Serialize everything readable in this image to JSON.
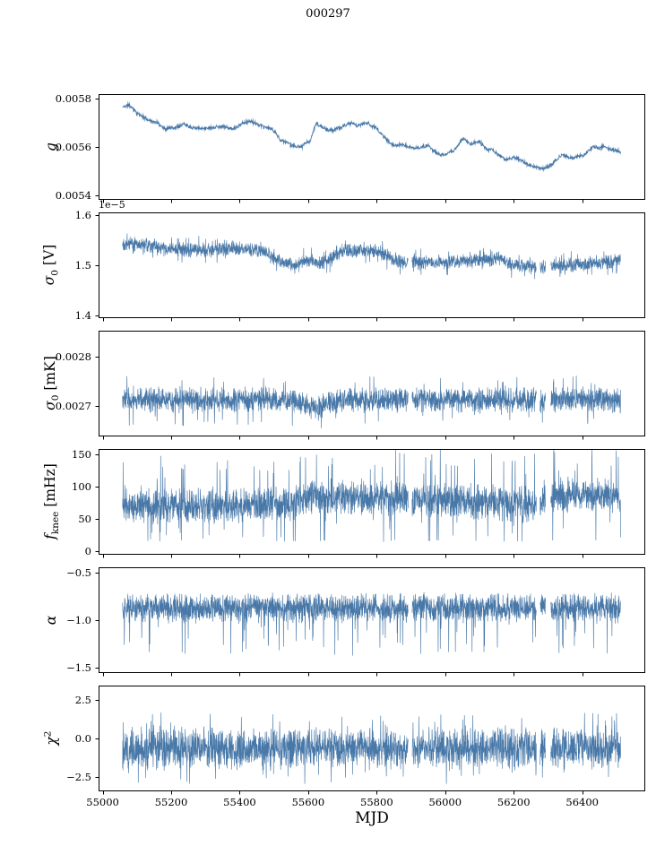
{
  "chart_data": {
    "type": "line",
    "title": "000297",
    "xlabel": "MJD",
    "line_color": "#4878a8",
    "axis_color": "#000000",
    "xlim": [
      54988,
      56584
    ],
    "x_start": 55058,
    "x_end": 56512,
    "xticks": [
      55000,
      55200,
      55400,
      55600,
      55800,
      56000,
      56200,
      56400
    ],
    "xtick_labels": [
      "55000",
      "55200",
      "55400",
      "55600",
      "55800",
      "56000",
      "56200",
      "56400"
    ],
    "gaps": [
      [
        55892,
        55903
      ],
      [
        56266,
        56277
      ],
      [
        56293,
        56308
      ]
    ],
    "panels": [
      {
        "id": "g",
        "ylabel": {
          "italic": "g",
          "sub": "",
          "sup": "",
          "unit": ""
        },
        "ylim": [
          0.00538,
          0.00582
        ],
        "ytick_values": [
          0.0054,
          0.0056,
          0.0058
        ],
        "ytick_labels": [
          "0.0054",
          "0.0056",
          "0.0058"
        ],
        "offset_label": "",
        "style": "smooth",
        "n_points": 1600,
        "seed": 11,
        "noise": 6e-06,
        "walk": 2e-06,
        "walk_max": 2e-05,
        "mean_points": [
          [
            55058,
            0.005765
          ],
          [
            55075,
            0.005775
          ],
          [
            55100,
            0.005745
          ],
          [
            55130,
            0.005715
          ],
          [
            55160,
            0.005705
          ],
          [
            55185,
            0.005685
          ],
          [
            55210,
            0.005695
          ],
          [
            55235,
            0.005715
          ],
          [
            55260,
            0.0057
          ],
          [
            55290,
            0.005695
          ],
          [
            55320,
            0.0057
          ],
          [
            55350,
            0.005705
          ],
          [
            55380,
            0.00569
          ],
          [
            55410,
            0.00571
          ],
          [
            55435,
            0.00572
          ],
          [
            55465,
            0.005685
          ],
          [
            55495,
            0.00567
          ],
          [
            55520,
            0.005625
          ],
          [
            55550,
            0.005612
          ],
          [
            55580,
            0.0056
          ],
          [
            55605,
            0.005615
          ],
          [
            55625,
            0.005688
          ],
          [
            55645,
            0.005665
          ],
          [
            55670,
            0.00565
          ],
          [
            55695,
            0.005665
          ],
          [
            55720,
            0.00568
          ],
          [
            55750,
            0.00568
          ],
          [
            55775,
            0.00569
          ],
          [
            55800,
            0.00567
          ],
          [
            55825,
            0.00563
          ],
          [
            55850,
            0.005595
          ],
          [
            55875,
            0.005605
          ],
          [
            55900,
            0.005585
          ],
          [
            55925,
            0.00558
          ],
          [
            55950,
            0.005595
          ],
          [
            55975,
            0.005565
          ],
          [
            56000,
            0.00556
          ],
          [
            56025,
            0.005565
          ],
          [
            56050,
            0.00562
          ],
          [
            56075,
            0.0056
          ],
          [
            56100,
            0.005615
          ],
          [
            56125,
            0.005575
          ],
          [
            56150,
            0.00556
          ],
          [
            56175,
            0.005535
          ],
          [
            56200,
            0.005545
          ],
          [
            56225,
            0.005525
          ],
          [
            56250,
            0.005505
          ],
          [
            56280,
            0.00549
          ],
          [
            56310,
            0.005512
          ],
          [
            56340,
            0.00556
          ],
          [
            56370,
            0.005545
          ],
          [
            56400,
            0.005558
          ],
          [
            56430,
            0.005595
          ],
          [
            56460,
            0.005588
          ],
          [
            56485,
            0.00557
          ],
          [
            56512,
            0.005565
          ]
        ]
      },
      {
        "id": "sigma0_V",
        "ylabel": {
          "italic": "σ",
          "sub": "0",
          "sup": "",
          "unit": " [V]"
        },
        "ylim": [
          1.395,
          1.605
        ],
        "ytick_values": [
          1.4,
          1.5,
          1.6
        ],
        "ytick_labels": [
          "1.4",
          "1.5",
          "1.6"
        ],
        "offset_label": "1e−5",
        "style": "noisy",
        "n_points": 2600,
        "seed": 22,
        "noise": 0.016,
        "spike_p": 0.05,
        "spike_amp": 0.02,
        "spike_dir": 0,
        "mean_points": [
          [
            55058,
            1.545
          ],
          [
            55120,
            1.54
          ],
          [
            55200,
            1.532
          ],
          [
            55300,
            1.53
          ],
          [
            55400,
            1.533
          ],
          [
            55460,
            1.53
          ],
          [
            55520,
            1.508
          ],
          [
            55560,
            1.5
          ],
          [
            55600,
            1.51
          ],
          [
            55640,
            1.505
          ],
          [
            55700,
            1.528
          ],
          [
            55800,
            1.53
          ],
          [
            55840,
            1.515
          ],
          [
            55880,
            1.505
          ],
          [
            55960,
            1.505
          ],
          [
            56040,
            1.508
          ],
          [
            56120,
            1.512
          ],
          [
            56160,
            1.515
          ],
          [
            56200,
            1.5
          ],
          [
            56300,
            1.498
          ],
          [
            56400,
            1.503
          ],
          [
            56512,
            1.51
          ]
        ]
      },
      {
        "id": "sigma0_mK",
        "ylabel": {
          "italic": "σ",
          "sub": "0",
          "sup": "",
          "unit": " [mK]"
        },
        "ylim": [
          0.002638,
          0.002852
        ],
        "ytick_values": [
          0.0027,
          0.0028
        ],
        "ytick_labels": [
          "0.0027",
          "0.0028"
        ],
        "offset_label": "",
        "style": "noisy",
        "n_points": 2600,
        "seed": 33,
        "noise": 2.8e-05,
        "spike_p": 0.04,
        "spike_amp": 4e-05,
        "spike_dir": 0,
        "mean_points": [
          [
            55058,
            0.002712
          ],
          [
            55540,
            0.002712
          ],
          [
            55590,
            0.002703
          ],
          [
            55620,
            0.002694
          ],
          [
            55660,
            0.002704
          ],
          [
            55700,
            0.002712
          ],
          [
            56512,
            0.002712
          ]
        ]
      },
      {
        "id": "f_knee",
        "ylabel": {
          "italic": "f",
          "sub": "knee",
          "sup": "",
          "unit": " [mHz]"
        },
        "ylim": [
          -6,
          158
        ],
        "ytick_values": [
          0,
          50,
          100,
          150
        ],
        "ytick_labels": [
          "0",
          "50",
          "100",
          "150"
        ],
        "offset_label": "",
        "style": "noisy",
        "n_points": 2600,
        "seed": 44,
        "noise": 30,
        "spike_p": 0.07,
        "spike_amp": 65,
        "spike_dir": 0,
        "floor": 14,
        "mean_points": [
          [
            55058,
            68
          ],
          [
            55300,
            70
          ],
          [
            55550,
            74
          ],
          [
            55610,
            84
          ],
          [
            55900,
            80
          ],
          [
            56100,
            76
          ],
          [
            56240,
            70
          ],
          [
            56330,
            88
          ],
          [
            56512,
            86
          ]
        ]
      },
      {
        "id": "alpha",
        "ylabel": {
          "italic": "α",
          "sub": "",
          "sup": "",
          "unit": ""
        },
        "ylim": [
          -1.56,
          -0.44
        ],
        "ytick_values": [
          -0.5,
          -1.0,
          -1.5
        ],
        "ytick_labels": [
          "−0.5",
          "−1.0",
          "−1.5"
        ],
        "offset_label": "",
        "style": "noisy",
        "n_points": 2600,
        "seed": 55,
        "noise": 0.17,
        "spike_p": 0.035,
        "spike_amp": 0.42,
        "spike_dir": -1,
        "mean_points": [
          [
            55058,
            -0.87
          ],
          [
            56512,
            -0.87
          ]
        ]
      },
      {
        "id": "chi2",
        "ylabel": {
          "italic": "χ",
          "sub": "",
          "sup": "2",
          "unit": ""
        },
        "ylim": [
          -3.45,
          3.45
        ],
        "ytick_values": [
          -2.5,
          0.0,
          2.5
        ],
        "ytick_labels": [
          "−2.5",
          "0.0",
          "2.5"
        ],
        "offset_label": "",
        "style": "noisy",
        "n_points": 2600,
        "seed": 66,
        "noise": 1.5,
        "spike_p": 0.05,
        "spike_amp": 1.6,
        "spike_dir": 0,
        "mean_points": [
          [
            55058,
            -0.65
          ],
          [
            56512,
            -0.6
          ]
        ]
      }
    ]
  }
}
